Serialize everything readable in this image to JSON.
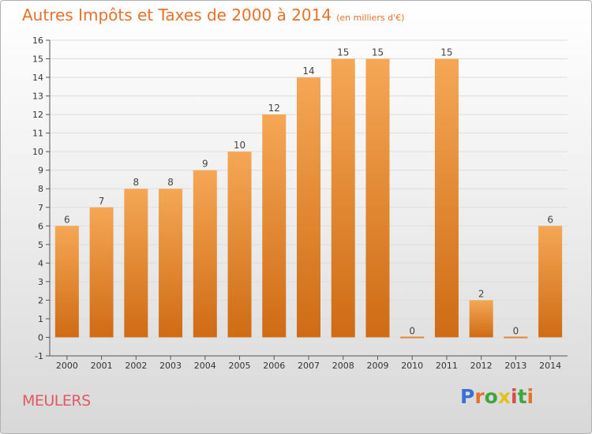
{
  "header": {
    "title": "Autres Impôts et Taxes de 2000 à 2014",
    "subtitle": "(en milliers d'€)"
  },
  "footer": {
    "city": "MEULERS",
    "logo_text": "Proxiti",
    "logo_colors": [
      "#3b6fd6",
      "#e8712a",
      "#3aa83a",
      "#e0c21a",
      "#d94a4a",
      "#3aa83a",
      "#e8712a"
    ]
  },
  "colors": {
    "bar_light": "#f5a755",
    "bar_dark": "#cf6b14",
    "grid": "#dddddd",
    "axis": "#555555"
  },
  "chart_data": {
    "type": "bar",
    "title": "Autres Impôts et Taxes de 2000 à 2014",
    "subtitle": "(en milliers d'€)",
    "xlabel": "",
    "ylabel": "",
    "categories": [
      "2000",
      "2001",
      "2002",
      "2003",
      "2004",
      "2005",
      "2006",
      "2007",
      "2008",
      "2009",
      "2010",
      "2011",
      "2012",
      "2013",
      "2014"
    ],
    "values": [
      6,
      7,
      8,
      8,
      9,
      10,
      12,
      14,
      15,
      15,
      0,
      15,
      2,
      0,
      6
    ],
    "data_labels": [
      "6",
      "7",
      "8",
      "8",
      "9",
      "10",
      "12",
      "14",
      "15",
      "15",
      "0",
      "15",
      "2",
      "0",
      "6"
    ],
    "ylim": [
      -1,
      16
    ],
    "yticks": [
      "-1",
      "0",
      "1",
      "2",
      "3",
      "4",
      "5",
      "6",
      "7",
      "8",
      "9",
      "10",
      "11",
      "12",
      "13",
      "14",
      "15",
      "16"
    ],
    "grid": true,
    "legend": "none"
  }
}
